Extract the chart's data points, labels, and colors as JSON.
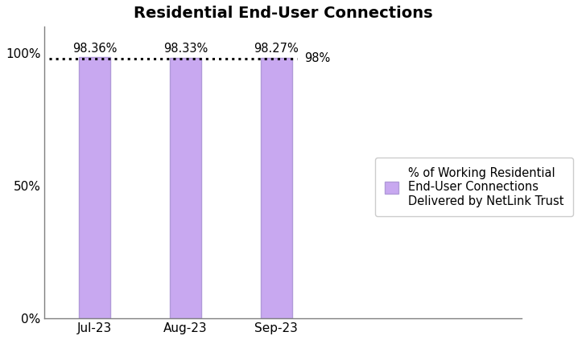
{
  "title": "Residential End-User Connections",
  "categories": [
    "Jul-23",
    "Aug-23",
    "Sep-23"
  ],
  "values": [
    98.36,
    98.33,
    98.27
  ],
  "bar_labels": [
    "98.36%",
    "98.33%",
    "98.27%"
  ],
  "bar_color": "#c8a8f0",
  "bar_edgecolor": "#b09ad8",
  "ylim": [
    0,
    110
  ],
  "yticks": [
    0,
    50,
    100
  ],
  "ytick_labels": [
    "0%",
    "50%",
    "100%"
  ],
  "reference_line_y": 98,
  "reference_line_label": "98%",
  "reference_line_color": "#000000",
  "legend_label": "% of Working Residential\nEnd-User Connections\nDelivered by NetLink Trust",
  "title_fontsize": 14,
  "label_fontsize": 10.5,
  "tick_fontsize": 11,
  "legend_fontsize": 10.5,
  "background_color": "#ffffff"
}
